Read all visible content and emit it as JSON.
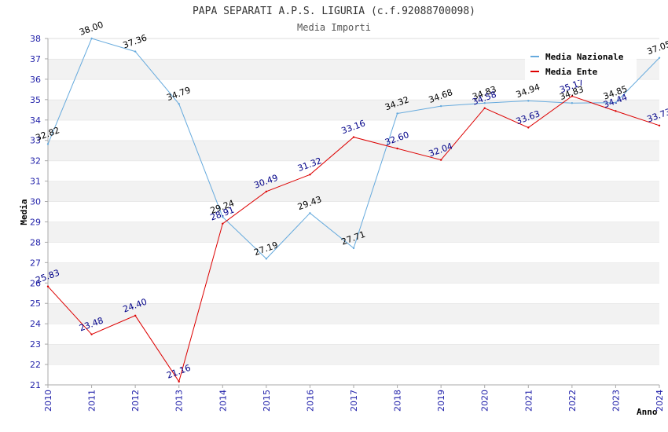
{
  "chart_data": {
    "type": "line",
    "title": "PAPA SEPARATI A.P.S. LIGURIA (c.f.92088700098)",
    "subtitle": "Media Importi",
    "xlabel": "Anno",
    "ylabel": "Media",
    "ylim": [
      21,
      38
    ],
    "yticks": [
      21,
      22,
      23,
      24,
      25,
      26,
      27,
      28,
      29,
      30,
      31,
      32,
      33,
      34,
      35,
      36,
      37,
      38
    ],
    "categories": [
      "2010",
      "2011",
      "2012",
      "2013",
      "2014",
      "2015",
      "2016",
      "2017",
      "2018",
      "2019",
      "2020",
      "2021",
      "2022",
      "2023",
      "2024"
    ],
    "grid": "horizontal-bands",
    "legend_position": "top-right",
    "series": [
      {
        "name": "Media Nazionale",
        "color": "#66aadd",
        "label_color": "#000000",
        "values": [
          32.82,
          38.0,
          37.36,
          34.79,
          29.24,
          27.19,
          29.43,
          27.71,
          34.32,
          34.68,
          34.83,
          34.94,
          34.83,
          34.85,
          37.05
        ],
        "labels": [
          "32.82",
          "38.00",
          "37.36",
          "34.79",
          "29.24",
          "27.19",
          "29.43",
          "27.71",
          "34.32",
          "34.68",
          "34.83",
          "34.94",
          "34.83",
          "34.85",
          "37.05"
        ]
      },
      {
        "name": "Media Ente",
        "color": "#dd0000",
        "label_color": "#000088",
        "values": [
          25.83,
          23.48,
          24.4,
          21.16,
          28.91,
          30.49,
          31.32,
          33.16,
          32.6,
          32.04,
          34.58,
          33.63,
          35.17,
          34.44,
          33.73
        ],
        "labels": [
          "25.83",
          "23.48",
          "24.40",
          "21.16",
          "28.91",
          "30.49",
          "31.32",
          "33.16",
          "32.60",
          "32.04",
          "34.58",
          "33.63",
          "35.17",
          "34.44",
          "33.73"
        ]
      }
    ]
  }
}
